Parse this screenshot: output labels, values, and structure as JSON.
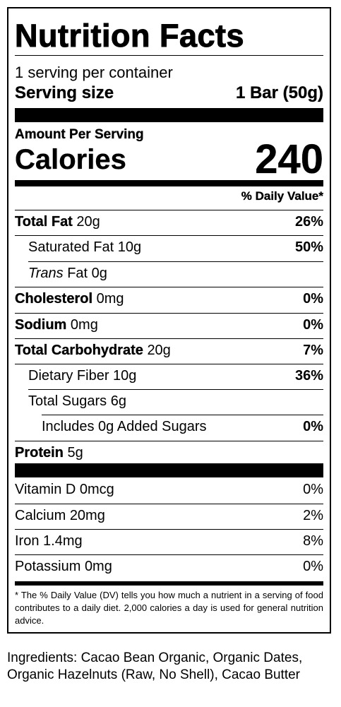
{
  "label": {
    "title": "Nutrition Facts",
    "servings_per_container": "1 serving per container",
    "serving_size_label": "Serving size",
    "serving_size_value": "1 Bar (50g)",
    "amount_per_serving": "Amount Per Serving",
    "calories_label": "Calories",
    "calories_value": "240",
    "dv_header": "% Daily Value*",
    "nutrients": [
      {
        "name": "Total Fat",
        "amount": "20g",
        "dv": "26%"
      },
      {
        "name": "Saturated Fat",
        "amount": "10g",
        "dv": "50%"
      },
      {
        "name": "Trans",
        "amount": "Fat 0g",
        "dv": ""
      },
      {
        "name": "Cholesterol",
        "amount": "0mg",
        "dv": "0%"
      },
      {
        "name": "Sodium",
        "amount": "0mg",
        "dv": "0%"
      },
      {
        "name": "Total Carbohydrate",
        "amount": "20g",
        "dv": "7%"
      },
      {
        "name": "Dietary Fiber",
        "amount": "10g",
        "dv": "36%"
      },
      {
        "name": "Total Sugars",
        "amount": "6g",
        "dv": ""
      },
      {
        "name": "Includes 0g Added Sugars",
        "amount": "",
        "dv": "0%"
      },
      {
        "name": "Protein",
        "amount": "5g",
        "dv": ""
      }
    ],
    "vitamins": [
      {
        "name": "Vitamin D",
        "amount": "0mcg",
        "dv": "0%"
      },
      {
        "name": "Calcium",
        "amount": "20mg",
        "dv": "2%"
      },
      {
        "name": "Iron",
        "amount": "1.4mg",
        "dv": "8%"
      },
      {
        "name": "Potassium",
        "amount": "0mg",
        "dv": "0%"
      }
    ],
    "footnote": "* The % Daily Value (DV) tells you how much a nutrient in a serving of food contributes to a daily diet. 2,000 calories a day is used for general nutrition advice."
  },
  "ingredients": "Ingredients: Cacao Bean Organic, Organic Dates, Organic Hazelnuts (Raw, No Shell), Cacao Butter"
}
